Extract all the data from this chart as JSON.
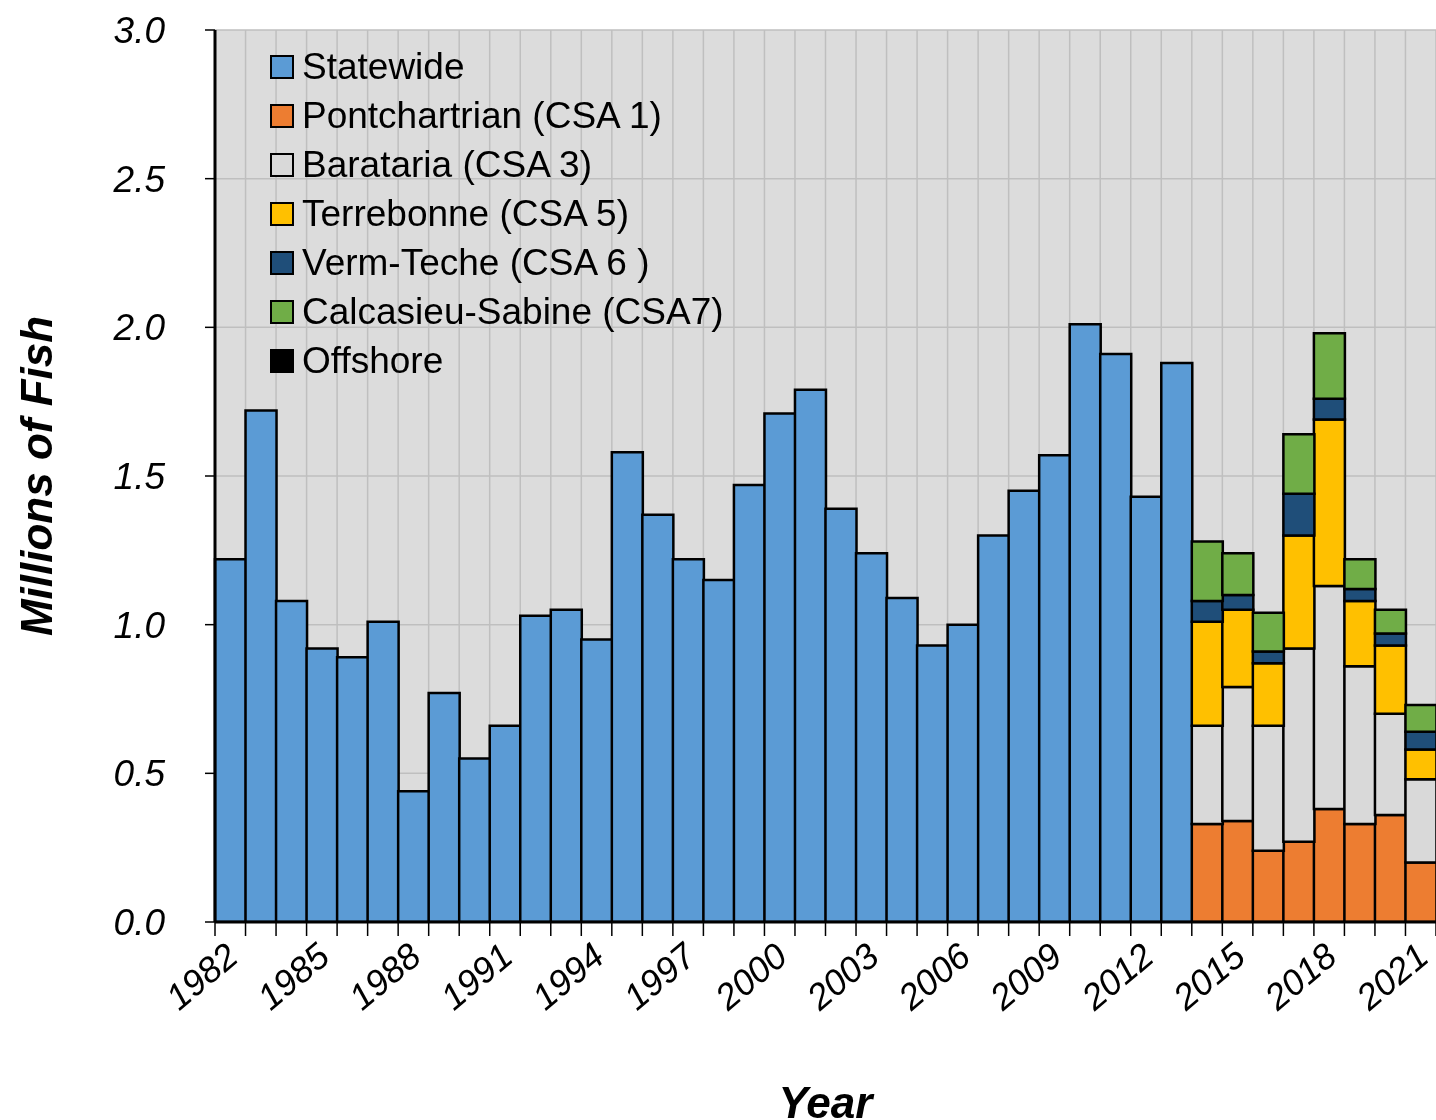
{
  "chart_data": {
    "type": "bar",
    "stacked": true,
    "xlabel": "Year",
    "ylabel": "Millions of Fish",
    "categories": [
      "1982",
      null,
      null,
      "1985",
      null,
      null,
      "1988",
      null,
      null,
      "1991",
      null,
      null,
      "1994",
      null,
      null,
      "1997",
      null,
      null,
      "2000",
      null,
      null,
      "2003",
      null,
      null,
      "2006",
      null,
      null,
      "2009",
      null,
      null,
      "2012",
      null,
      null,
      "2015",
      null,
      null,
      "2018",
      null,
      null,
      "2021"
    ],
    "ylim": [
      0,
      3
    ],
    "yticks": [
      {
        "value": 0,
        "label": "0.0"
      },
      {
        "value": 0.5,
        "label": "0.5"
      },
      {
        "value": 1,
        "label": "1.0"
      },
      {
        "value": 1.5,
        "label": "1.5"
      },
      {
        "value": 2,
        "label": "2.0"
      },
      {
        "value": 2.5,
        "label": "2.5"
      },
      {
        "value": 3,
        "label": "3.0"
      }
    ],
    "grid": true,
    "legend": "top left",
    "series": [
      {
        "name": "Statewide",
        "color": "#5b9bd5",
        "values": [
          1.22,
          1.72,
          1.08,
          0.92,
          0.89,
          1.01,
          0.44,
          0.77,
          0.55,
          0.66,
          1.03,
          1.05,
          0.95,
          1.58,
          1.37,
          1.22,
          1.15,
          1.47,
          1.71,
          1.79,
          1.39,
          1.24,
          1.09,
          0.93,
          1.0,
          1.3,
          1.45,
          1.57,
          2.01,
          1.91,
          1.43,
          1.88,
          null,
          null,
          null,
          null,
          null,
          null,
          null,
          null
        ]
      },
      {
        "name": "Pontchartrian (CSA 1)",
        "color": "#ed7d31",
        "values": [
          null,
          null,
          null,
          null,
          null,
          null,
          null,
          null,
          null,
          null,
          null,
          null,
          null,
          null,
          null,
          null,
          null,
          null,
          null,
          null,
          null,
          null,
          null,
          null,
          null,
          null,
          null,
          null,
          null,
          null,
          null,
          null,
          0.33,
          0.34,
          0.24,
          0.27,
          0.38,
          0.33,
          0.36,
          0.2
        ]
      },
      {
        "name": "Barataria (CSA 3)",
        "color": "#d9d9d9",
        "values": [
          null,
          null,
          null,
          null,
          null,
          null,
          null,
          null,
          null,
          null,
          null,
          null,
          null,
          null,
          null,
          null,
          null,
          null,
          null,
          null,
          null,
          null,
          null,
          null,
          null,
          null,
          null,
          null,
          null,
          null,
          null,
          null,
          0.33,
          0.45,
          0.42,
          0.65,
          0.75,
          0.53,
          0.34,
          0.28
        ]
      },
      {
        "name": "Terrebonne (CSA 5)",
        "color": "#ffc000",
        "values": [
          null,
          null,
          null,
          null,
          null,
          null,
          null,
          null,
          null,
          null,
          null,
          null,
          null,
          null,
          null,
          null,
          null,
          null,
          null,
          null,
          null,
          null,
          null,
          null,
          null,
          null,
          null,
          null,
          null,
          null,
          null,
          null,
          0.35,
          0.26,
          0.21,
          0.38,
          0.56,
          0.22,
          0.23,
          0.1
        ]
      },
      {
        "name": "Verm-Teche (CSA 6 )",
        "color": "#1f4e79",
        "values": [
          null,
          null,
          null,
          null,
          null,
          null,
          null,
          null,
          null,
          null,
          null,
          null,
          null,
          null,
          null,
          null,
          null,
          null,
          null,
          null,
          null,
          null,
          null,
          null,
          null,
          null,
          null,
          null,
          null,
          null,
          null,
          null,
          0.07,
          0.05,
          0.04,
          0.14,
          0.07,
          0.04,
          0.04,
          0.06
        ]
      },
      {
        "name": "Calcasieu-Sabine (CSA7)",
        "color": "#70ad47",
        "values": [
          null,
          null,
          null,
          null,
          null,
          null,
          null,
          null,
          null,
          null,
          null,
          null,
          null,
          null,
          null,
          null,
          null,
          null,
          null,
          null,
          null,
          null,
          null,
          null,
          null,
          null,
          null,
          null,
          null,
          null,
          null,
          null,
          0.2,
          0.14,
          0.13,
          0.2,
          0.22,
          0.1,
          0.08,
          0.09
        ]
      },
      {
        "name": "Offshore",
        "color": "#000000",
        "values": [
          null,
          null,
          null,
          null,
          null,
          null,
          null,
          null,
          null,
          null,
          null,
          null,
          null,
          null,
          null,
          null,
          null,
          null,
          null,
          null,
          null,
          null,
          null,
          null,
          null,
          null,
          null,
          null,
          null,
          null,
          null,
          null,
          0,
          0,
          0,
          0,
          0,
          0,
          0,
          0
        ]
      }
    ]
  }
}
